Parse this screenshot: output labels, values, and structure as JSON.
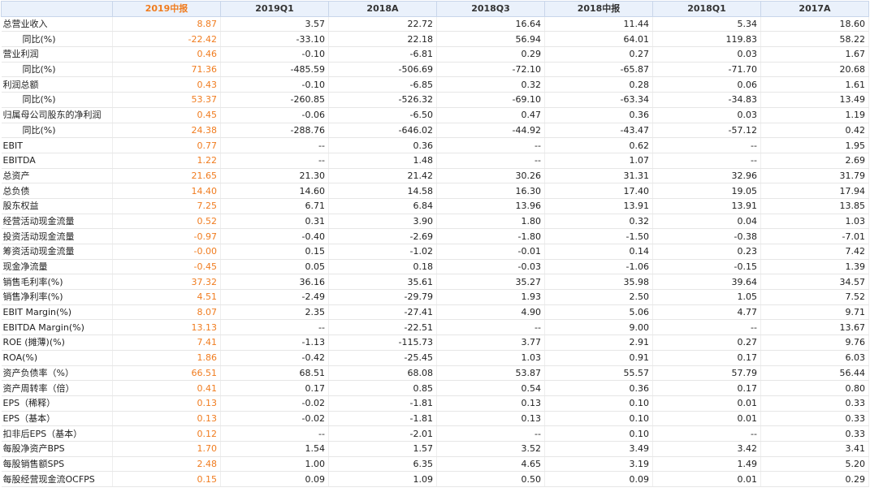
{
  "table": {
    "columns": [
      "2019中报",
      "2019Q1",
      "2018A",
      "2018Q3",
      "2018中报",
      "2018Q1",
      "2017A"
    ],
    "sections": [
      [
        {
          "label": "总营业收入",
          "values": [
            "8.87",
            "3.57",
            "22.72",
            "16.64",
            "11.44",
            "5.34",
            "18.60"
          ],
          "children": [
            {
              "label": "同比(%)",
              "values": [
                "-22.42",
                "-33.10",
                "22.18",
                "56.94",
                "64.01",
                "119.83",
                "58.22"
              ]
            }
          ]
        },
        {
          "label": "营业利润",
          "values": [
            "0.46",
            "-0.10",
            "-6.81",
            "0.29",
            "0.27",
            "0.03",
            "1.67"
          ],
          "children": [
            {
              "label": "同比(%)",
              "values": [
                "71.36",
                "-485.59",
                "-506.69",
                "-72.10",
                "-65.87",
                "-71.70",
                "20.68"
              ]
            }
          ]
        },
        {
          "label": "利润总额",
          "values": [
            "0.43",
            "-0.10",
            "-6.85",
            "0.32",
            "0.28",
            "0.06",
            "1.61"
          ],
          "children": [
            {
              "label": "同比(%)",
              "values": [
                "53.37",
                "-260.85",
                "-526.32",
                "-69.10",
                "-63.34",
                "-34.83",
                "13.49"
              ]
            }
          ]
        },
        {
          "label": "归属母公司股东的净利润",
          "values": [
            "0.45",
            "-0.06",
            "-6.50",
            "0.47",
            "0.36",
            "0.03",
            "1.19"
          ],
          "children": [
            {
              "label": "同比(%)",
              "values": [
                "24.38",
                "-288.76",
                "-646.02",
                "-44.92",
                "-43.47",
                "-57.12",
                "0.42"
              ]
            }
          ]
        },
        {
          "label": "EBIT",
          "values": [
            "0.77",
            "--",
            "0.36",
            "--",
            "0.62",
            "--",
            "1.95"
          ]
        },
        {
          "label": "EBITDA",
          "values": [
            "1.22",
            "--",
            "1.48",
            "--",
            "1.07",
            "--",
            "2.69"
          ]
        }
      ],
      [
        {
          "label": "总资产",
          "values": [
            "21.65",
            "21.30",
            "21.42",
            "30.26",
            "31.31",
            "32.96",
            "31.79"
          ]
        },
        {
          "label": "总负债",
          "values": [
            "14.40",
            "14.60",
            "14.58",
            "16.30",
            "17.40",
            "19.05",
            "17.94"
          ]
        },
        {
          "label": "股东权益",
          "values": [
            "7.25",
            "6.71",
            "6.84",
            "13.96",
            "13.91",
            "13.91",
            "13.85"
          ]
        }
      ],
      [
        {
          "label": "经营活动现金流量",
          "values": [
            "0.52",
            "0.31",
            "3.90",
            "1.80",
            "0.32",
            "0.04",
            "1.03"
          ]
        },
        {
          "label": "投资活动现金流量",
          "values": [
            "-0.97",
            "-0.40",
            "-2.69",
            "-1.80",
            "-1.50",
            "-0.38",
            "-7.01"
          ]
        },
        {
          "label": "筹资活动现金流量",
          "values": [
            "-0.00",
            "0.15",
            "-1.02",
            "-0.01",
            "0.14",
            "0.23",
            "7.42"
          ]
        },
        {
          "label": "现金净流量",
          "values": [
            "-0.45",
            "0.05",
            "0.18",
            "-0.03",
            "-1.06",
            "-0.15",
            "1.39"
          ]
        }
      ],
      [
        {
          "label": "销售毛利率(%)",
          "values": [
            "37.32",
            "36.16",
            "35.61",
            "35.27",
            "35.98",
            "39.64",
            "34.57"
          ]
        },
        {
          "label": "销售净利率(%)",
          "values": [
            "4.51",
            "-2.49",
            "-29.79",
            "1.93",
            "2.50",
            "1.05",
            "7.52"
          ]
        },
        {
          "label": "EBIT Margin(%)",
          "values": [
            "8.07",
            "2.35",
            "-27.41",
            "4.90",
            "5.06",
            "4.77",
            "9.71"
          ]
        },
        {
          "label": "EBITDA Margin(%)",
          "values": [
            "13.13",
            "--",
            "-22.51",
            "--",
            "9.00",
            "--",
            "13.67"
          ]
        },
        {
          "label": "ROE (摊薄)(%)",
          "values": [
            "7.41",
            "-1.13",
            "-115.73",
            "3.77",
            "2.91",
            "0.27",
            "9.76"
          ]
        },
        {
          "label": "ROA(%)",
          "values": [
            "1.86",
            "-0.42",
            "-25.45",
            "1.03",
            "0.91",
            "0.17",
            "6.03"
          ]
        },
        {
          "label": "资产负债率（%）",
          "values": [
            "66.51",
            "68.51",
            "68.08",
            "53.87",
            "55.57",
            "57.79",
            "56.44"
          ]
        },
        {
          "label": "资产周转率（倍）",
          "values": [
            "0.41",
            "0.17",
            "0.85",
            "0.54",
            "0.36",
            "0.17",
            "0.80"
          ]
        }
      ],
      [
        {
          "label": "EPS（稀释）",
          "values": [
            "0.13",
            "-0.02",
            "-1.81",
            "0.13",
            "0.10",
            "0.01",
            "0.33"
          ]
        },
        {
          "label": "EPS（基本）",
          "values": [
            "0.13",
            "-0.02",
            "-1.81",
            "0.13",
            "0.10",
            "0.01",
            "0.33"
          ]
        },
        {
          "label": "扣非后EPS（基本）",
          "values": [
            "0.12",
            "--",
            "-2.01",
            "--",
            "0.10",
            "--",
            "0.33"
          ]
        },
        {
          "label": "每股净资产BPS",
          "values": [
            "1.70",
            "1.54",
            "1.57",
            "3.52",
            "3.49",
            "3.42",
            "3.41"
          ]
        },
        {
          "label": "每股销售额SPS",
          "values": [
            "2.48",
            "1.00",
            "6.35",
            "4.65",
            "3.19",
            "1.49",
            "5.20"
          ]
        },
        {
          "label": "每股经营现金流OCFPS",
          "values": [
            "0.15",
            "0.09",
            "1.09",
            "0.50",
            "0.09",
            "0.01",
            "0.29"
          ]
        }
      ]
    ]
  }
}
